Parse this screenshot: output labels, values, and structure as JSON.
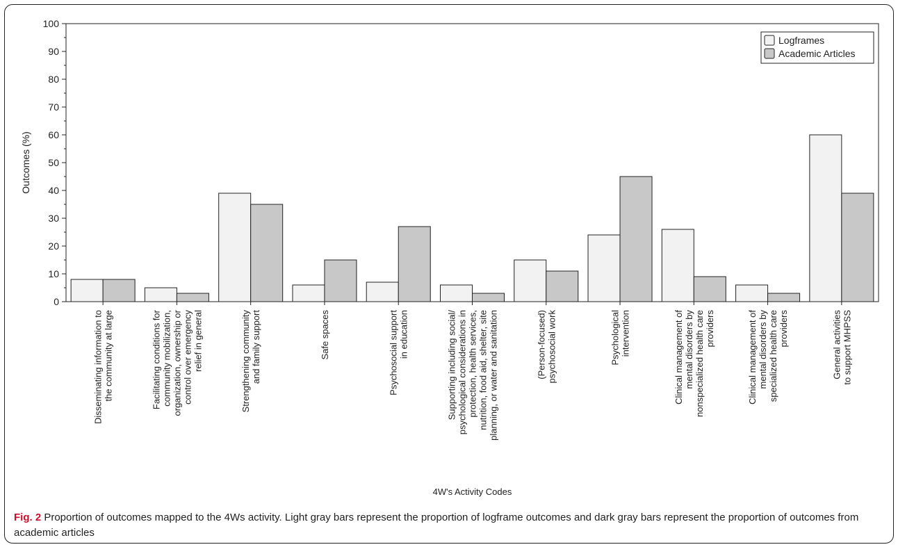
{
  "caption": {
    "label": "Fig. 2",
    "text": " Proportion of outcomes mapped to the 4Ws activity. Light gray bars represent the proportion of logframe outcomes and dark gray bars represent the proportion of outcomes from academic articles"
  },
  "chart_data": {
    "type": "bar",
    "xlabel": "4W's Activity Codes",
    "ylabel": "Outcomes (%)",
    "ylim": [
      0,
      100
    ],
    "yticks": [
      0,
      10,
      20,
      30,
      40,
      50,
      60,
      70,
      80,
      90,
      100
    ],
    "grid": false,
    "legend_position": "top-right",
    "categories": [
      [
        "Disseminating information to",
        "the community at large"
      ],
      [
        "Facilitating conditions for",
        "community mobilization,",
        "organization, ownership or",
        "control over emergency",
        "relief in general"
      ],
      [
        "Strengthening community",
        "and family support"
      ],
      [
        "Safe spaces"
      ],
      [
        "Psychosocial support",
        "in education"
      ],
      [
        "Supporting including social/",
        "psychological considerations in",
        "protection, health services,",
        "nutrition, food aid, shelter, site",
        "planning, or water and sanitation"
      ],
      [
        "(Person-focused)",
        "psychosocial work"
      ],
      [
        "Psychological",
        "intervention"
      ],
      [
        "Clinical management of",
        "mental disorders by",
        "nonspecialized health care",
        "providers"
      ],
      [
        "Clinical management of",
        "mental disorders by",
        "specialized health care",
        "providers"
      ],
      [
        "General activities",
        "to support MHPSS"
      ]
    ],
    "series": [
      {
        "name": "Logframes",
        "color": "#f2f2f2",
        "values": [
          8,
          5,
          39,
          6,
          7,
          6,
          15,
          24,
          26,
          6,
          60
        ]
      },
      {
        "name": "Academic Articles",
        "color": "#c8c8c8",
        "values": [
          8,
          3,
          35,
          15,
          27,
          3,
          11,
          45,
          9,
          3,
          39
        ]
      }
    ]
  }
}
